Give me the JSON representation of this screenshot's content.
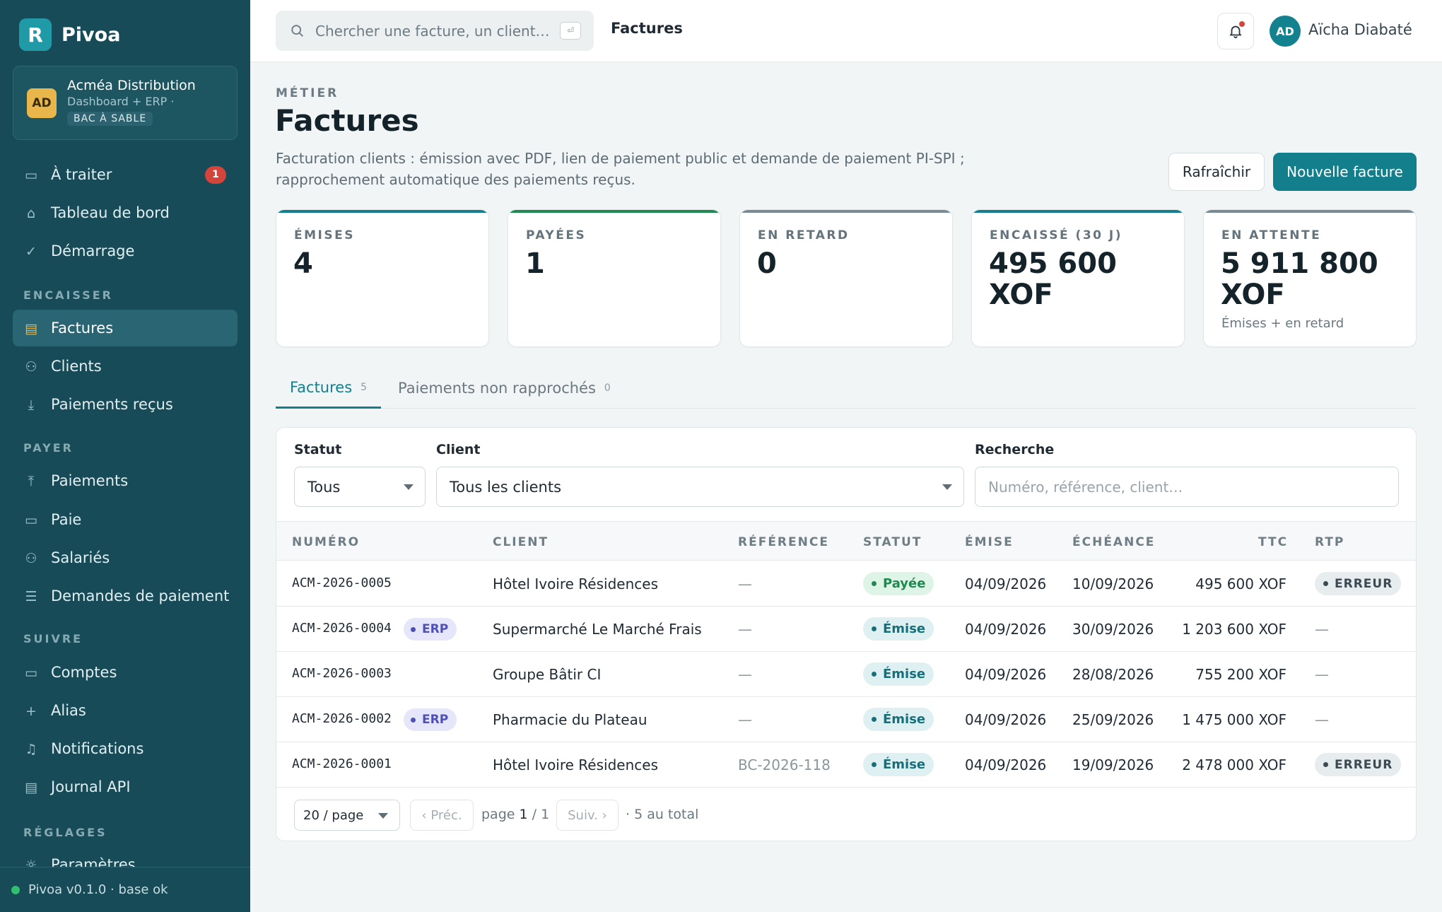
{
  "brand": {
    "logo_letter": "R",
    "name": "Pivoa"
  },
  "org": {
    "initials": "AD",
    "name": "Acméa Distribution",
    "sub": "Dashboard + ERP ·",
    "badge": "BAC À SABLE"
  },
  "nav": {
    "top": [
      {
        "label": "À traiter",
        "icon": "inbox-icon",
        "badge": "1"
      },
      {
        "label": "Tableau de bord",
        "icon": "home-icon"
      },
      {
        "label": "Démarrage",
        "icon": "check-icon"
      }
    ],
    "sections": [
      {
        "title": "ENCAISSER",
        "items": [
          {
            "label": "Factures",
            "icon": "document-icon",
            "active": true
          },
          {
            "label": "Clients",
            "icon": "users-icon"
          },
          {
            "label": "Paiements reçus",
            "icon": "download-icon"
          }
        ]
      },
      {
        "title": "PAYER",
        "items": [
          {
            "label": "Paiements",
            "icon": "upload-icon"
          },
          {
            "label": "Paie",
            "icon": "wallet-icon"
          },
          {
            "label": "Salariés",
            "icon": "people-icon"
          },
          {
            "label": "Demandes de paiement",
            "icon": "list-icon"
          }
        ]
      },
      {
        "title": "SUIVRE",
        "items": [
          {
            "label": "Comptes",
            "icon": "card-icon"
          },
          {
            "label": "Alias",
            "icon": "plus-icon"
          },
          {
            "label": "Notifications",
            "icon": "bell-icon"
          },
          {
            "label": "Journal API",
            "icon": "journal-icon"
          }
        ]
      },
      {
        "title": "RÉGLAGES",
        "items": [
          {
            "label": "Paramètres",
            "icon": "sun-icon"
          }
        ]
      }
    ]
  },
  "footer": {
    "status": "Pivoa v0.1.0 · base ok",
    "status_color": "#2fbf71"
  },
  "topbar": {
    "search_placeholder": "Chercher une facture, un client…",
    "kbd": "⏎",
    "breadcrumb": "Factures",
    "user_initials": "AD",
    "user_name": "Aïcha Diabaté"
  },
  "page": {
    "eyebrow": "MÉTIER",
    "title": "Factures",
    "description": "Facturation clients : émission avec PDF, lien de paiement public et demande de paiement PI-SPI ; rapprochement automatique des paiements reçus.",
    "refresh_label": "Rafraîchir",
    "new_label": "Nouvelle facture"
  },
  "stats": [
    {
      "label": "ÉMISES",
      "value": "4",
      "sub": "",
      "accent": "#137f8c"
    },
    {
      "label": "PAYÉES",
      "value": "1",
      "sub": "",
      "accent": "#1f8a4f"
    },
    {
      "label": "EN RETARD",
      "value": "0",
      "sub": "",
      "accent": "#7a8a92"
    },
    {
      "label": "ENCAISSÉ (30 J)",
      "value": "495 600 XOF",
      "sub": "",
      "accent": "#137f8c"
    },
    {
      "label": "EN ATTENTE",
      "value": "5 911 800 XOF",
      "sub": "Émises + en retard",
      "accent": "#7a8a92"
    }
  ],
  "tabs": [
    {
      "label": "Factures",
      "count": "5",
      "active": true
    },
    {
      "label": "Paiements non rapprochés",
      "count": "0",
      "active": false
    }
  ],
  "filters": {
    "status_label": "Statut",
    "status_value": "Tous",
    "client_label": "Client",
    "client_value": "Tous les clients",
    "search_label": "Recherche",
    "search_placeholder": "Numéro, référence, client…"
  },
  "table": {
    "columns": [
      "NUMÉRO",
      "CLIENT",
      "RÉFÉRENCE",
      "STATUT",
      "ÉMISE",
      "ÉCHÉANCE",
      "TTC",
      "RTP"
    ],
    "rows": [
      {
        "numero": "ACM-2026-0005",
        "erp": "",
        "client": "Hôtel Ivoire Résidences",
        "reference": "—",
        "statut": "Payée",
        "statut_kind": "paid",
        "emise": "04/09/2026",
        "echeance": "10/09/2026",
        "ttc": "495 600 XOF",
        "rtp": "ERREUR"
      },
      {
        "numero": "ACM-2026-0004",
        "erp": "ERP",
        "client": "Supermarché Le Marché Frais",
        "reference": "—",
        "statut": "Émise",
        "statut_kind": "emis",
        "emise": "04/09/2026",
        "echeance": "30/09/2026",
        "ttc": "1 203 600 XOF",
        "rtp": "—"
      },
      {
        "numero": "ACM-2026-0003",
        "erp": "",
        "client": "Groupe Bâtir CI",
        "reference": "—",
        "statut": "Émise",
        "statut_kind": "emis",
        "emise": "04/09/2026",
        "echeance": "28/08/2026",
        "ttc": "755 200 XOF",
        "rtp": "—"
      },
      {
        "numero": "ACM-2026-0002",
        "erp": "ERP",
        "client": "Pharmacie du Plateau",
        "reference": "—",
        "statut": "Émise",
        "statut_kind": "emis",
        "emise": "04/09/2026",
        "echeance": "25/09/2026",
        "ttc": "1 475 000 XOF",
        "rtp": "—"
      },
      {
        "numero": "ACM-2026-0001",
        "erp": "",
        "client": "Hôtel Ivoire Résidences",
        "reference": "BC-2026-118",
        "statut": "Émise",
        "statut_kind": "emis",
        "emise": "04/09/2026",
        "echeance": "19/09/2026",
        "ttc": "2 478 000 XOF",
        "rtp": "ERREUR"
      }
    ]
  },
  "pager": {
    "per_page": "20 / page",
    "prev": "‹ Préc.",
    "page_prefix": "page",
    "page_current": "1",
    "page_sep": "/ 1",
    "next": "Suiv. ›",
    "total": "· 5 au total"
  }
}
